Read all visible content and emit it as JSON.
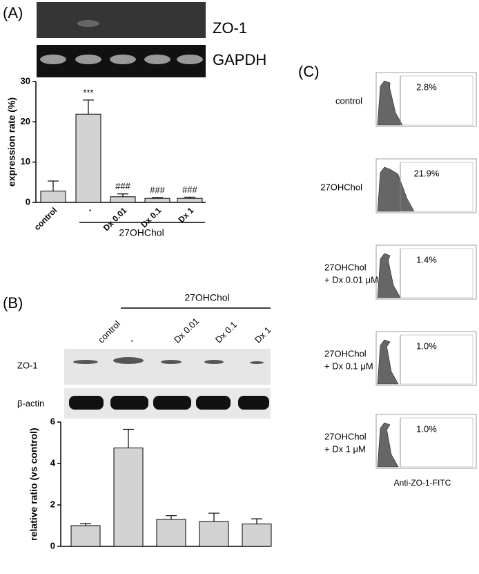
{
  "panel_a": {
    "label": "(A)",
    "gel_labels": [
      "ZO-1",
      "GAPDH"
    ],
    "group_label": "27OHChol"
  },
  "panel_b": {
    "label": "(B)",
    "group_label": "27OHChol",
    "lane_labels": [
      "control",
      "-",
      "Dx 0.01",
      "Dx 0.1",
      "Dx 1"
    ],
    "blot_labels": [
      "ZO-1",
      "β-actin"
    ]
  },
  "panel_c": {
    "label": "(C)",
    "rows": [
      {
        "lines": [
          "control"
        ],
        "percent": "2.8%"
      },
      {
        "lines": [
          "27OHChol"
        ],
        "percent": "21.9%"
      },
      {
        "lines": [
          "27OHChol",
          "+ Dx 0.01 μM"
        ],
        "percent": "1.4%"
      },
      {
        "lines": [
          "27OHChol",
          "+ Dx 0.1 μM"
        ],
        "percent": "1.0%"
      },
      {
        "lines": [
          "27OHChol",
          "+ Dx 1 μM"
        ],
        "percent": "1.0%"
      }
    ],
    "x_label": "Anti-ZO-1-FITC"
  },
  "chart_data": [
    {
      "type": "bar",
      "y_label": "expression rate (%)",
      "categories": [
        "control",
        "-",
        "Dx 0.01",
        "Dx 0.1",
        "Dx 1"
      ],
      "values": [
        2.8,
        21.9,
        1.4,
        1.0,
        1.0
      ],
      "errors": [
        2.5,
        3.5,
        0.7,
        0.2,
        0.3
      ],
      "annotations": [
        {
          "category": "-",
          "text": "***"
        },
        {
          "category": "Dx 0.01",
          "text": "###"
        },
        {
          "category": "Dx 0.1",
          "text": "###"
        },
        {
          "category": "Dx 1",
          "text": "###"
        }
      ],
      "color": "#d3d3d3",
      "ylim": [
        0,
        30
      ],
      "yticks": [
        0,
        10,
        20,
        30
      ]
    },
    {
      "type": "bar",
      "y_label": "relative ratio (vs control)",
      "values": [
        1.0,
        4.75,
        1.3,
        1.2,
        1.08
      ],
      "errors": [
        0.1,
        0.9,
        0.18,
        0.4,
        0.25
      ],
      "color": "#d3d3d3",
      "ylim": [
        0,
        6
      ],
      "yticks": [
        0,
        2,
        4,
        6
      ]
    }
  ]
}
